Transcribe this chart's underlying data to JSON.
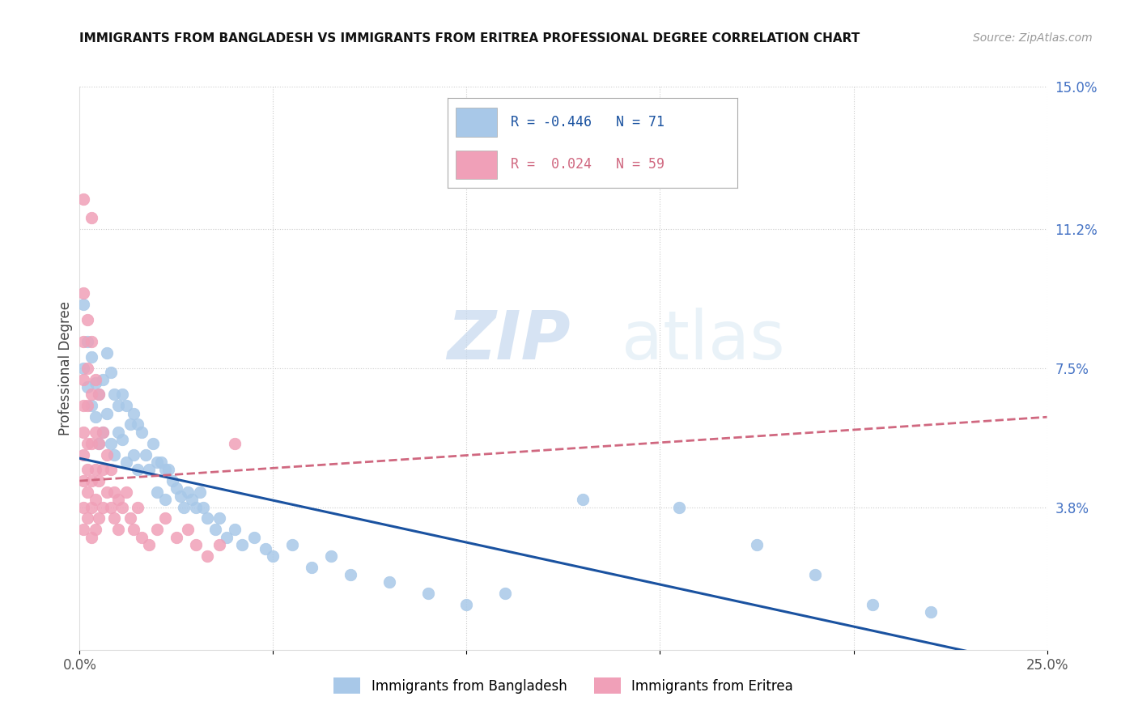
{
  "title": "IMMIGRANTS FROM BANGLADESH VS IMMIGRANTS FROM ERITREA PROFESSIONAL DEGREE CORRELATION CHART",
  "source": "Source: ZipAtlas.com",
  "ylabel": "Professional Degree",
  "xlim": [
    0.0,
    0.25
  ],
  "ylim": [
    0.0,
    0.15
  ],
  "right_yticks": [
    0.0,
    0.038,
    0.075,
    0.112,
    0.15
  ],
  "right_yticklabels": [
    "",
    "3.8%",
    "7.5%",
    "11.2%",
    "15.0%"
  ],
  "bangladesh_color": "#a8c8e8",
  "eritrea_color": "#f0a0b8",
  "bangladesh_line_color": "#1a52a0",
  "eritrea_line_color": "#d06880",
  "legend_R_bangladesh": "-0.446",
  "legend_N_bangladesh": "71",
  "legend_R_eritrea": "0.024",
  "legend_N_eritrea": "59",
  "watermark_zip": "ZIP",
  "watermark_atlas": "atlas",
  "bangladesh_line": [
    0.0,
    0.051,
    0.25,
    -0.005
  ],
  "eritrea_line": [
    0.0,
    0.045,
    0.25,
    0.062
  ],
  "bangladesh_points": [
    [
      0.001,
      0.092
    ],
    [
      0.002,
      0.082
    ],
    [
      0.001,
      0.075
    ],
    [
      0.002,
      0.07
    ],
    [
      0.003,
      0.078
    ],
    [
      0.003,
      0.065
    ],
    [
      0.004,
      0.071
    ],
    [
      0.004,
      0.062
    ],
    [
      0.005,
      0.068
    ],
    [
      0.005,
      0.055
    ],
    [
      0.006,
      0.072
    ],
    [
      0.006,
      0.058
    ],
    [
      0.007,
      0.079
    ],
    [
      0.007,
      0.063
    ],
    [
      0.008,
      0.074
    ],
    [
      0.008,
      0.055
    ],
    [
      0.009,
      0.068
    ],
    [
      0.009,
      0.052
    ],
    [
      0.01,
      0.065
    ],
    [
      0.01,
      0.058
    ],
    [
      0.011,
      0.068
    ],
    [
      0.011,
      0.056
    ],
    [
      0.012,
      0.065
    ],
    [
      0.012,
      0.05
    ],
    [
      0.013,
      0.06
    ],
    [
      0.014,
      0.063
    ],
    [
      0.014,
      0.052
    ],
    [
      0.015,
      0.06
    ],
    [
      0.015,
      0.048
    ],
    [
      0.016,
      0.058
    ],
    [
      0.017,
      0.052
    ],
    [
      0.018,
      0.048
    ],
    [
      0.019,
      0.055
    ],
    [
      0.02,
      0.05
    ],
    [
      0.02,
      0.042
    ],
    [
      0.021,
      0.05
    ],
    [
      0.022,
      0.048
    ],
    [
      0.022,
      0.04
    ],
    [
      0.023,
      0.048
    ],
    [
      0.024,
      0.045
    ],
    [
      0.025,
      0.043
    ],
    [
      0.026,
      0.041
    ],
    [
      0.027,
      0.038
    ],
    [
      0.028,
      0.042
    ],
    [
      0.029,
      0.04
    ],
    [
      0.03,
      0.038
    ],
    [
      0.031,
      0.042
    ],
    [
      0.032,
      0.038
    ],
    [
      0.033,
      0.035
    ],
    [
      0.035,
      0.032
    ],
    [
      0.036,
      0.035
    ],
    [
      0.038,
      0.03
    ],
    [
      0.04,
      0.032
    ],
    [
      0.042,
      0.028
    ],
    [
      0.045,
      0.03
    ],
    [
      0.048,
      0.027
    ],
    [
      0.05,
      0.025
    ],
    [
      0.055,
      0.028
    ],
    [
      0.06,
      0.022
    ],
    [
      0.065,
      0.025
    ],
    [
      0.07,
      0.02
    ],
    [
      0.08,
      0.018
    ],
    [
      0.09,
      0.015
    ],
    [
      0.1,
      0.012
    ],
    [
      0.11,
      0.015
    ],
    [
      0.13,
      0.04
    ],
    [
      0.155,
      0.038
    ],
    [
      0.175,
      0.028
    ],
    [
      0.19,
      0.02
    ],
    [
      0.205,
      0.012
    ],
    [
      0.22,
      0.01
    ]
  ],
  "eritrea_points": [
    [
      0.001,
      0.12
    ],
    [
      0.001,
      0.095
    ],
    [
      0.001,
      0.082
    ],
    [
      0.001,
      0.072
    ],
    [
      0.001,
      0.065
    ],
    [
      0.001,
      0.058
    ],
    [
      0.001,
      0.052
    ],
    [
      0.001,
      0.045
    ],
    [
      0.001,
      0.038
    ],
    [
      0.001,
      0.032
    ],
    [
      0.002,
      0.088
    ],
    [
      0.002,
      0.075
    ],
    [
      0.002,
      0.065
    ],
    [
      0.002,
      0.055
    ],
    [
      0.002,
      0.048
    ],
    [
      0.002,
      0.042
    ],
    [
      0.002,
      0.035
    ],
    [
      0.003,
      0.115
    ],
    [
      0.003,
      0.082
    ],
    [
      0.003,
      0.068
    ],
    [
      0.003,
      0.055
    ],
    [
      0.003,
      0.045
    ],
    [
      0.003,
      0.038
    ],
    [
      0.003,
      0.03
    ],
    [
      0.004,
      0.072
    ],
    [
      0.004,
      0.058
    ],
    [
      0.004,
      0.048
    ],
    [
      0.004,
      0.04
    ],
    [
      0.004,
      0.032
    ],
    [
      0.005,
      0.068
    ],
    [
      0.005,
      0.055
    ],
    [
      0.005,
      0.045
    ],
    [
      0.005,
      0.035
    ],
    [
      0.006,
      0.058
    ],
    [
      0.006,
      0.048
    ],
    [
      0.006,
      0.038
    ],
    [
      0.007,
      0.052
    ],
    [
      0.007,
      0.042
    ],
    [
      0.008,
      0.048
    ],
    [
      0.008,
      0.038
    ],
    [
      0.009,
      0.042
    ],
    [
      0.009,
      0.035
    ],
    [
      0.01,
      0.04
    ],
    [
      0.01,
      0.032
    ],
    [
      0.011,
      0.038
    ],
    [
      0.012,
      0.042
    ],
    [
      0.013,
      0.035
    ],
    [
      0.014,
      0.032
    ],
    [
      0.015,
      0.038
    ],
    [
      0.016,
      0.03
    ],
    [
      0.018,
      0.028
    ],
    [
      0.02,
      0.032
    ],
    [
      0.022,
      0.035
    ],
    [
      0.025,
      0.03
    ],
    [
      0.028,
      0.032
    ],
    [
      0.03,
      0.028
    ],
    [
      0.033,
      0.025
    ],
    [
      0.036,
      0.028
    ],
    [
      0.04,
      0.055
    ]
  ]
}
